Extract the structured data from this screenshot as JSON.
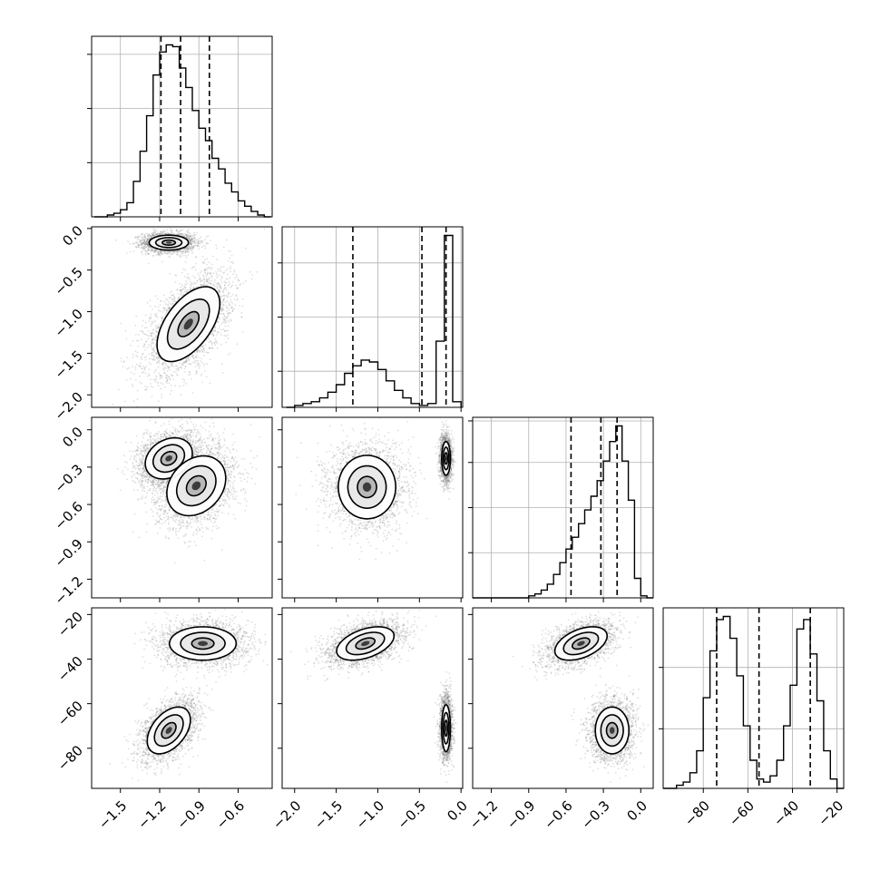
{
  "chart_data": {
    "type": "corner",
    "parameters": [
      {
        "ticks": [
          -1.5,
          -1.2,
          -0.9,
          -0.6
        ],
        "tick_labels": [
          "−1.5",
          "−1.2",
          "−0.9",
          "−0.6"
        ],
        "range": [
          -1.72,
          -0.34
        ]
      },
      {
        "ticks": [
          -2.0,
          -1.5,
          -1.0,
          -0.5,
          0.0
        ],
        "tick_labels": [
          "−2.0",
          "−1.5",
          "−1.0",
          "−0.5",
          "0.0"
        ],
        "range": [
          -2.15,
          0.02
        ]
      },
      {
        "ticks": [
          -1.2,
          -0.9,
          -0.6,
          -0.3,
          0.0
        ],
        "tick_labels": [
          "−1.2",
          "−0.9",
          "−0.6",
          "−0.3",
          "0.0"
        ],
        "range": [
          -1.35,
          0.1
        ]
      },
      {
        "ticks": [
          -80,
          -60,
          -40,
          -20
        ],
        "tick_labels": [
          "−80",
          "−60",
          "−40",
          "−20"
        ],
        "range": [
          -98,
          -17
        ]
      }
    ],
    "marginals": [
      {
        "bins": [
          -1.7,
          -1.65,
          -1.6,
          -1.55,
          -1.5,
          -1.45,
          -1.4,
          -1.35,
          -1.3,
          -1.25,
          -1.2,
          -1.15,
          -1.1,
          -1.05,
          -1.0,
          -0.95,
          -0.9,
          -0.85,
          -0.8,
          -0.75,
          -0.7,
          -0.65,
          -0.6,
          -0.55,
          -0.5,
          -0.45,
          -0.4,
          -0.35
        ],
        "counts": [
          0,
          0,
          1,
          2,
          4,
          8,
          20,
          37,
          57,
          80,
          93,
          97,
          96,
          84,
          73,
          60,
          50,
          43,
          33,
          27,
          19,
          14,
          9,
          6,
          3,
          1,
          0
        ],
        "quantiles": [
          -1.19,
          -1.04,
          -0.82
        ],
        "grid": [
          0.3,
          0.6,
          0.9
        ]
      },
      {
        "bins": [
          -2.1,
          -2.0,
          -1.9,
          -1.8,
          -1.7,
          -1.6,
          -1.5,
          -1.4,
          -1.3,
          -1.2,
          -1.1,
          -1.0,
          -0.9,
          -0.8,
          -0.7,
          -0.6,
          -0.5,
          -0.4,
          -0.3,
          -0.2,
          -0.1,
          0.0
        ],
        "counts": [
          0,
          1,
          2,
          3,
          5,
          8,
          12,
          18,
          22,
          25,
          24,
          20,
          14,
          9,
          5,
          2,
          1,
          2,
          35,
          91,
          3
        ],
        "quantiles": [
          -1.3,
          -0.47,
          -0.18
        ],
        "grid": [
          0.2,
          0.5,
          0.8
        ]
      },
      {
        "bins": [
          -1.35,
          -1.3,
          -1.25,
          -1.2,
          -1.15,
          -1.1,
          -1.05,
          -1.0,
          -0.95,
          -0.9,
          -0.85,
          -0.8,
          -0.75,
          -0.7,
          -0.65,
          -0.6,
          -0.55,
          -0.5,
          -0.45,
          -0.4,
          -0.35,
          -0.3,
          -0.25,
          -0.2,
          -0.15,
          -0.1,
          -0.05,
          0.0,
          0.05,
          0.1
        ],
        "counts": [
          0,
          0,
          0,
          0,
          0,
          0,
          0,
          0,
          0,
          1,
          2,
          4,
          7,
          12,
          18,
          25,
          31,
          38,
          45,
          52,
          60,
          70,
          80,
          88,
          70,
          50,
          10,
          1,
          0
        ],
        "quantiles": [
          -0.56,
          -0.32,
          -0.19
        ],
        "grid": [
          0.25,
          0.5,
          0.75,
          0.98
        ]
      },
      {
        "bins": [
          -98,
          -95,
          -92,
          -89,
          -86,
          -83,
          -80,
          -77,
          -74,
          -71,
          -68,
          -65,
          -62,
          -59,
          -56,
          -53,
          -50,
          -47,
          -44,
          -41,
          -38,
          -35,
          -32,
          -29,
          -26,
          -23,
          -20,
          -17
        ],
        "counts": [
          0,
          0,
          1,
          2,
          5,
          12,
          29,
          44,
          54,
          55,
          48,
          36,
          20,
          9,
          3,
          2,
          4,
          9,
          20,
          33,
          51,
          54,
          43,
          28,
          12,
          3,
          0
        ],
        "quantiles": [
          -74,
          -55,
          -32
        ],
        "grid": [
          0.33,
          0.67
        ]
      }
    ],
    "joint": [
      {
        "row": 1,
        "col": 0,
        "modes": [
          {
            "cx": -1.13,
            "cy": -0.17,
            "sx": 0.1,
            "sy": 0.06,
            "rho": 0.0,
            "n": 2200
          },
          {
            "cx": -0.98,
            "cy": -1.15,
            "sx": 0.16,
            "sy": 0.3,
            "rho": 0.55,
            "n": 3000
          }
        ]
      },
      {
        "row": 2,
        "col": 0,
        "modes": [
          {
            "cx": -1.13,
            "cy": -0.23,
            "sx": 0.12,
            "sy": 0.11,
            "rho": 0.25,
            "n": 2400
          },
          {
            "cx": -0.92,
            "cy": -0.45,
            "sx": 0.15,
            "sy": 0.16,
            "rho": 0.25,
            "n": 2400
          }
        ]
      },
      {
        "row": 2,
        "col": 1,
        "modes": [
          {
            "cx": -1.13,
            "cy": -0.46,
            "sx": 0.23,
            "sy": 0.17,
            "rho": 0.0,
            "n": 2600
          },
          {
            "cx": -0.18,
            "cy": -0.23,
            "sx": 0.035,
            "sy": 0.09,
            "rho": 0.0,
            "n": 2200
          }
        ]
      },
      {
        "row": 3,
        "col": 0,
        "modes": [
          {
            "cx": -0.87,
            "cy": -33,
            "sx": 0.17,
            "sy": 5.0,
            "rho": 0.0,
            "n": 2400
          },
          {
            "cx": -1.13,
            "cy": -72,
            "sx": 0.11,
            "sy": 7.0,
            "rho": 0.45,
            "n": 2400
          }
        ]
      },
      {
        "row": 3,
        "col": 1,
        "modes": [
          {
            "cx": -1.15,
            "cy": -33,
            "sx": 0.23,
            "sy": 5.0,
            "rho": 0.45,
            "n": 2400
          },
          {
            "cx": -0.18,
            "cy": -71,
            "sx": 0.035,
            "sy": 7.0,
            "rho": 0.0,
            "n": 2400
          }
        ]
      },
      {
        "row": 3,
        "col": 2,
        "modes": [
          {
            "cx": -0.48,
            "cy": -33,
            "sx": 0.14,
            "sy": 5.0,
            "rho": 0.45,
            "n": 2400
          },
          {
            "cx": -0.23,
            "cy": -72,
            "sx": 0.09,
            "sy": 7.0,
            "rho": 0.0,
            "n": 2400
          }
        ]
      }
    ],
    "contour_levels_sigma": [
      0.5,
      1.0,
      1.5
    ]
  }
}
